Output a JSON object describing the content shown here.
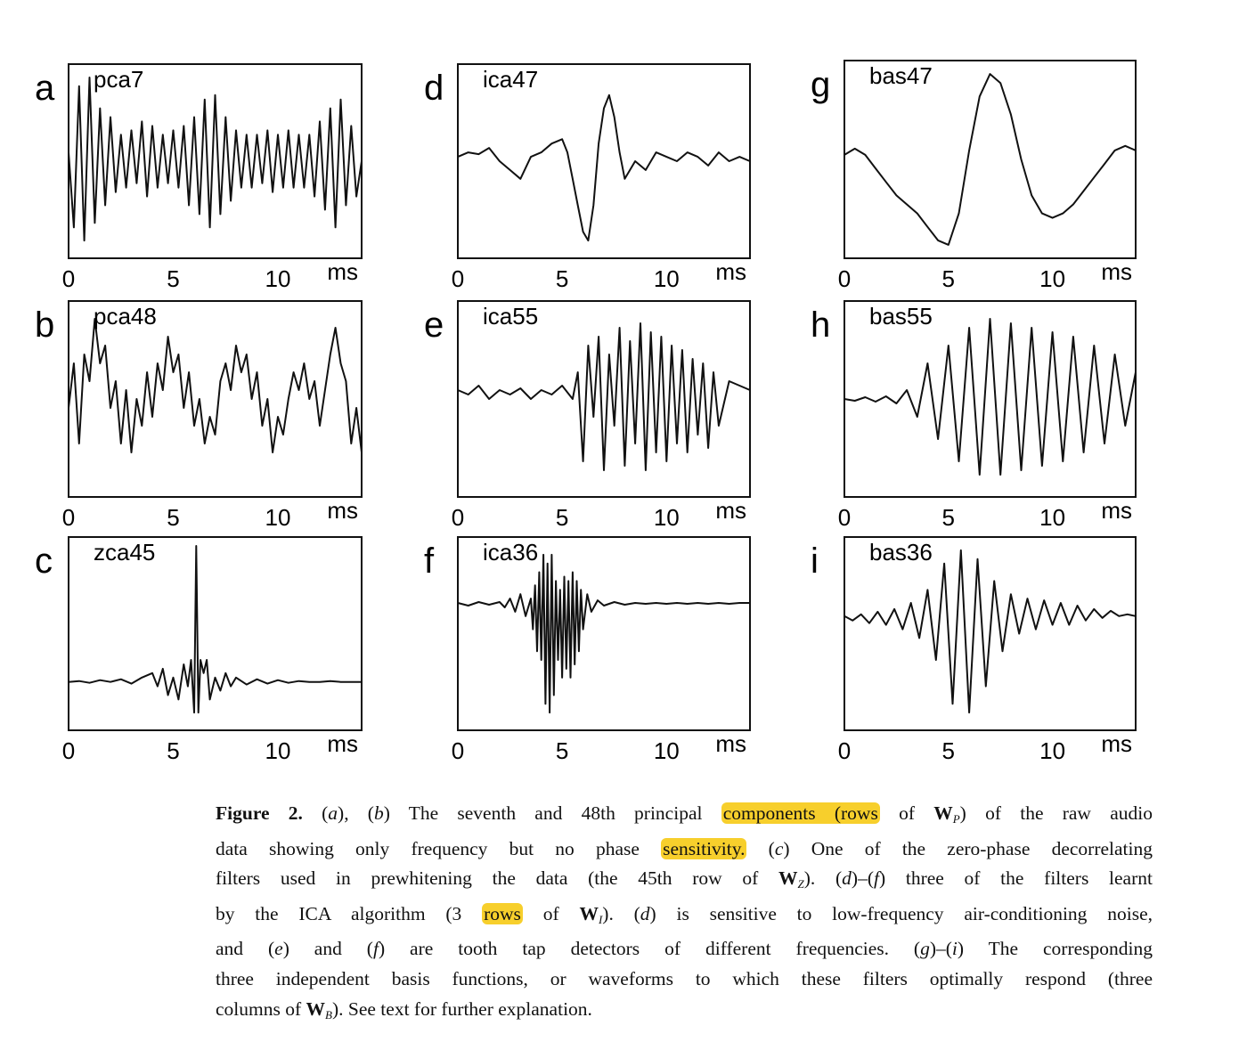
{
  "chart_data": [
    {
      "type": "line",
      "letter": "a",
      "title": "pca7",
      "xticks": [
        "0",
        "5",
        "10"
      ],
      "unit": "ms",
      "xlim": [
        0,
        14
      ],
      "ylim": [
        -1,
        1
      ],
      "x": [
        0.0,
        0.25,
        0.5,
        0.75,
        1.0,
        1.25,
        1.5,
        1.75,
        2.0,
        2.25,
        2.5,
        2.75,
        3.0,
        3.25,
        3.5,
        3.75,
        4.0,
        4.25,
        4.5,
        4.75,
        5.0,
        5.25,
        5.5,
        5.75,
        6.0,
        6.25,
        6.5,
        6.75,
        7.0,
        7.25,
        7.5,
        7.75,
        8.0,
        8.25,
        8.5,
        8.75,
        9.0,
        9.25,
        9.5,
        9.75,
        10.0,
        10.25,
        10.5,
        10.75,
        11.0,
        11.25,
        11.5,
        11.75,
        12.0,
        12.25,
        12.5,
        12.75,
        13.0,
        13.25,
        13.5,
        13.75,
        14.0
      ],
      "y": [
        0.1,
        -0.75,
        0.85,
        -0.9,
        0.95,
        -0.7,
        0.6,
        -0.5,
        0.5,
        -0.35,
        0.3,
        -0.3,
        0.35,
        -0.25,
        0.45,
        -0.4,
        0.4,
        -0.3,
        0.3,
        -0.25,
        0.35,
        -0.3,
        0.4,
        -0.5,
        0.5,
        -0.6,
        0.7,
        -0.75,
        0.75,
        -0.6,
        0.5,
        -0.45,
        0.35,
        -0.3,
        0.3,
        -0.3,
        0.3,
        -0.25,
        0.35,
        -0.35,
        0.3,
        -0.3,
        0.35,
        -0.3,
        0.3,
        -0.3,
        0.3,
        -0.4,
        0.45,
        -0.55,
        0.6,
        -0.75,
        0.7,
        -0.5,
        0.4,
        -0.4,
        0.0
      ]
    },
    {
      "type": "line",
      "letter": "b",
      "title": "pca48",
      "xticks": [
        "0",
        "5",
        "10"
      ],
      "unit": "ms",
      "xlim": [
        0,
        14
      ],
      "ylim": [
        -1,
        1
      ],
      "x": [
        0.0,
        0.25,
        0.5,
        0.75,
        1.0,
        1.25,
        1.5,
        1.75,
        2.0,
        2.25,
        2.5,
        2.75,
        3.0,
        3.25,
        3.5,
        3.75,
        4.0,
        4.25,
        4.5,
        4.75,
        5.0,
        5.25,
        5.5,
        5.75,
        6.0,
        6.25,
        6.5,
        6.75,
        7.0,
        7.25,
        7.5,
        7.75,
        8.0,
        8.25,
        8.5,
        8.75,
        9.0,
        9.25,
        9.5,
        9.75,
        10.0,
        10.25,
        10.5,
        10.75,
        11.0,
        11.25,
        11.5,
        11.75,
        12.0,
        12.25,
        12.5,
        12.75,
        13.0,
        13.25,
        13.5,
        13.75,
        14.0
      ],
      "y": [
        -0.1,
        0.4,
        -0.5,
        0.5,
        0.2,
        0.9,
        0.4,
        0.6,
        -0.1,
        0.2,
        -0.5,
        0.1,
        -0.6,
        0.0,
        -0.3,
        0.3,
        -0.2,
        0.4,
        0.1,
        0.7,
        0.3,
        0.5,
        -0.1,
        0.3,
        -0.3,
        0.0,
        -0.5,
        -0.2,
        -0.4,
        0.2,
        0.4,
        0.1,
        0.6,
        0.3,
        0.5,
        0.0,
        0.3,
        -0.3,
        0.0,
        -0.6,
        -0.2,
        -0.4,
        0.0,
        0.3,
        0.1,
        0.4,
        0.0,
        0.2,
        -0.3,
        0.1,
        0.5,
        0.8,
        0.4,
        0.2,
        -0.5,
        -0.1,
        -0.6
      ]
    },
    {
      "type": "line",
      "letter": "c",
      "title": "zca45",
      "xticks": [
        "0",
        "5",
        "10"
      ],
      "unit": "ms",
      "xlim": [
        0,
        14
      ],
      "ylim": [
        -1,
        1
      ],
      "x": [
        0.0,
        0.5,
        1.0,
        1.5,
        2.0,
        2.5,
        3.0,
        3.5,
        4.0,
        4.25,
        4.5,
        4.75,
        5.0,
        5.25,
        5.5,
        5.7,
        5.85,
        6.0,
        6.1,
        6.2,
        6.3,
        6.45,
        6.6,
        6.75,
        7.0,
        7.25,
        7.5,
        7.75,
        8.0,
        8.5,
        9.0,
        9.5,
        10.0,
        10.5,
        11.0,
        11.5,
        12.0,
        12.5,
        13.0,
        13.5,
        14.0
      ],
      "y": [
        -0.55,
        -0.54,
        -0.56,
        -0.53,
        -0.55,
        -0.52,
        -0.57,
        -0.5,
        -0.45,
        -0.6,
        -0.4,
        -0.7,
        -0.5,
        -0.75,
        -0.35,
        -0.6,
        -0.3,
        -0.9,
        1.0,
        -0.9,
        -0.3,
        -0.45,
        -0.3,
        -0.75,
        -0.5,
        -0.65,
        -0.45,
        -0.6,
        -0.5,
        -0.58,
        -0.52,
        -0.57,
        -0.53,
        -0.56,
        -0.54,
        -0.55,
        -0.55,
        -0.54,
        -0.55,
        -0.55,
        -0.55
      ]
    },
    {
      "type": "line",
      "letter": "d",
      "title": "ica47",
      "xticks": [
        "0",
        "5",
        "10"
      ],
      "unit": "ms",
      "xlim": [
        0,
        14
      ],
      "ylim": [
        -1,
        1
      ],
      "x": [
        0.0,
        0.5,
        1.0,
        1.5,
        2.0,
        2.5,
        3.0,
        3.5,
        4.0,
        4.5,
        5.0,
        5.25,
        5.5,
        5.75,
        6.0,
        6.25,
        6.5,
        6.75,
        7.0,
        7.25,
        7.5,
        7.75,
        8.0,
        8.5,
        9.0,
        9.5,
        10.0,
        10.5,
        11.0,
        11.5,
        12.0,
        12.5,
        13.0,
        13.5,
        14.0
      ],
      "y": [
        0.05,
        0.1,
        0.08,
        0.15,
        0.0,
        -0.1,
        -0.2,
        0.05,
        0.1,
        0.2,
        0.25,
        0.1,
        -0.2,
        -0.5,
        -0.8,
        -0.9,
        -0.5,
        0.2,
        0.6,
        0.75,
        0.5,
        0.1,
        -0.2,
        0.0,
        -0.1,
        0.1,
        0.05,
        0.0,
        0.1,
        0.05,
        -0.05,
        0.1,
        0.0,
        0.05,
        0.0
      ]
    },
    {
      "type": "line",
      "letter": "e",
      "title": "ica55",
      "xticks": [
        "0",
        "5",
        "10"
      ],
      "unit": "ms",
      "xlim": [
        0,
        14
      ],
      "ylim": [
        -1,
        1
      ],
      "x": [
        0.0,
        0.5,
        1.0,
        1.5,
        2.0,
        2.5,
        3.0,
        3.5,
        4.0,
        4.5,
        5.0,
        5.5,
        5.75,
        6.0,
        6.25,
        6.5,
        6.75,
        7.0,
        7.25,
        7.5,
        7.75,
        8.0,
        8.25,
        8.5,
        8.75,
        9.0,
        9.25,
        9.5,
        9.75,
        10.0,
        10.25,
        10.5,
        10.75,
        11.0,
        11.25,
        11.5,
        11.75,
        12.0,
        12.25,
        12.5,
        13.0,
        13.5,
        14.0
      ],
      "y": [
        0.1,
        0.05,
        0.15,
        0.0,
        0.1,
        0.05,
        0.12,
        0.0,
        0.1,
        0.05,
        0.15,
        0.0,
        0.3,
        -0.7,
        0.6,
        -0.2,
        0.7,
        -0.8,
        0.5,
        -0.3,
        0.8,
        -0.75,
        0.65,
        -0.5,
        0.85,
        -0.8,
        0.75,
        -0.6,
        0.7,
        -0.7,
        0.6,
        -0.5,
        0.55,
        -0.6,
        0.45,
        -0.4,
        0.4,
        -0.55,
        0.3,
        -0.3,
        0.2,
        0.15,
        0.1
      ]
    },
    {
      "type": "line",
      "letter": "f",
      "title": "ica36",
      "xticks": [
        "0",
        "5",
        "10"
      ],
      "unit": "ms",
      "xlim": [
        0,
        14
      ],
      "ylim": [
        -1,
        1
      ],
      "x": [
        0.0,
        0.5,
        1.0,
        1.5,
        2.0,
        2.25,
        2.5,
        2.75,
        3.0,
        3.25,
        3.5,
        3.6,
        3.7,
        3.8,
        3.9,
        4.0,
        4.1,
        4.2,
        4.3,
        4.4,
        4.5,
        4.6,
        4.7,
        4.8,
        4.9,
        5.0,
        5.1,
        5.2,
        5.3,
        5.4,
        5.5,
        5.6,
        5.7,
        5.8,
        5.9,
        6.0,
        6.2,
        6.4,
        6.7,
        7.0,
        7.5,
        8.0,
        8.5,
        9.0,
        9.5,
        10.0,
        10.5,
        11.0,
        11.5,
        12.0,
        12.5,
        13.0,
        13.5,
        14.0
      ],
      "y": [
        0.35,
        0.32,
        0.36,
        0.33,
        0.36,
        0.3,
        0.4,
        0.25,
        0.45,
        0.2,
        0.4,
        0.05,
        0.55,
        -0.2,
        0.7,
        -0.3,
        0.9,
        -0.8,
        0.8,
        -0.9,
        0.9,
        -0.7,
        0.6,
        -0.3,
        0.5,
        -0.5,
        0.65,
        -0.4,
        0.6,
        -0.5,
        0.7,
        -0.35,
        0.6,
        -0.2,
        0.5,
        0.05,
        0.45,
        0.25,
        0.38,
        0.32,
        0.36,
        0.33,
        0.35,
        0.34,
        0.35,
        0.34,
        0.35,
        0.34,
        0.35,
        0.34,
        0.35,
        0.34,
        0.35,
        0.35
      ]
    },
    {
      "type": "line",
      "letter": "g",
      "title": "bas47",
      "xticks": [
        "0",
        "5",
        "10"
      ],
      "unit": "ms",
      "xlim": [
        0,
        14
      ],
      "ylim": [
        -1,
        1
      ],
      "x": [
        0.0,
        0.5,
        1.0,
        1.5,
        2.0,
        2.5,
        3.0,
        3.5,
        4.0,
        4.5,
        5.0,
        5.5,
        6.0,
        6.5,
        7.0,
        7.5,
        8.0,
        8.5,
        9.0,
        9.5,
        10.0,
        10.5,
        11.0,
        11.5,
        12.0,
        12.5,
        13.0,
        13.5,
        14.0
      ],
      "y": [
        0.05,
        0.12,
        0.05,
        -0.1,
        -0.25,
        -0.4,
        -0.5,
        -0.6,
        -0.75,
        -0.9,
        -0.95,
        -0.6,
        0.1,
        0.7,
        0.95,
        0.85,
        0.5,
        0.0,
        -0.4,
        -0.6,
        -0.65,
        -0.6,
        -0.5,
        -0.35,
        -0.2,
        -0.05,
        0.1,
        0.15,
        0.1
      ]
    },
    {
      "type": "line",
      "letter": "h",
      "title": "bas55",
      "xticks": [
        "0",
        "5",
        "10"
      ],
      "unit": "ms",
      "xlim": [
        0,
        14
      ],
      "ylim": [
        -1,
        1
      ],
      "x": [
        0.0,
        0.5,
        1.0,
        1.5,
        2.0,
        2.5,
        3.0,
        3.5,
        4.0,
        4.5,
        5.0,
        5.5,
        6.0,
        6.5,
        7.0,
        7.5,
        8.0,
        8.5,
        9.0,
        9.5,
        10.0,
        10.5,
        11.0,
        11.5,
        12.0,
        12.5,
        13.0,
        13.5,
        14.0
      ],
      "y": [
        0.0,
        -0.02,
        0.02,
        -0.03,
        0.03,
        -0.05,
        0.1,
        -0.2,
        0.4,
        -0.45,
        0.6,
        -0.7,
        0.8,
        -0.85,
        0.9,
        -0.85,
        0.85,
        -0.8,
        0.8,
        -0.75,
        0.75,
        -0.7,
        0.7,
        -0.6,
        0.6,
        -0.5,
        0.5,
        -0.3,
        0.3
      ]
    },
    {
      "type": "line",
      "letter": "i",
      "title": "bas36",
      "xticks": [
        "0",
        "5",
        "10"
      ],
      "unit": "ms",
      "xlim": [
        0,
        14
      ],
      "ylim": [
        -1,
        1
      ],
      "x": [
        0.0,
        0.4,
        0.8,
        1.2,
        1.6,
        2.0,
        2.4,
        2.8,
        3.2,
        3.6,
        4.0,
        4.4,
        4.8,
        5.2,
        5.6,
        6.0,
        6.4,
        6.8,
        7.2,
        7.6,
        8.0,
        8.4,
        8.8,
        9.2,
        9.6,
        10.0,
        10.4,
        10.8,
        11.2,
        11.6,
        12.0,
        12.4,
        12.8,
        13.2,
        13.6,
        14.0
      ],
      "y": [
        0.2,
        0.15,
        0.22,
        0.12,
        0.25,
        0.1,
        0.28,
        0.05,
        0.35,
        -0.05,
        0.5,
        -0.3,
        0.8,
        -0.8,
        0.95,
        -0.9,
        0.85,
        -0.6,
        0.6,
        -0.2,
        0.45,
        0.0,
        0.4,
        0.05,
        0.38,
        0.1,
        0.35,
        0.1,
        0.32,
        0.15,
        0.28,
        0.18,
        0.26,
        0.2,
        0.22,
        0.2
      ]
    }
  ],
  "caption": {
    "lines": [
      [
        [
          "lbl",
          "Figure 2."
        ],
        [
          "t",
          " ("
        ],
        [
          "i",
          "a"
        ],
        [
          "t",
          "), ("
        ],
        [
          "i",
          "b"
        ],
        [
          "t",
          ") The seventh and 48th principal "
        ],
        [
          "hl",
          "components (rows"
        ],
        [
          "t",
          " of "
        ],
        [
          "b",
          "W"
        ],
        [
          "sub",
          "P"
        ],
        [
          "t",
          ") of the raw audio"
        ]
      ],
      [
        [
          "t",
          "data showing only frequency but no phase "
        ],
        [
          "hl",
          "sensitivity."
        ],
        [
          "t",
          " ("
        ],
        [
          "i",
          "c"
        ],
        [
          "t",
          ") One of the zero-phase decorrelating"
        ]
      ],
      [
        [
          "t",
          "filters used in prewhitening the data (the 45th row of "
        ],
        [
          "b",
          "W"
        ],
        [
          "sub",
          "Z"
        ],
        [
          "t",
          "). ("
        ],
        [
          "i",
          "d"
        ],
        [
          "t",
          ")–("
        ],
        [
          "i",
          "f"
        ],
        [
          "t",
          ") three of the filters learnt"
        ]
      ],
      [
        [
          "t",
          "by the ICA algorithm (3 "
        ],
        [
          "hl",
          "rows"
        ],
        [
          "t",
          " of "
        ],
        [
          "b",
          "W"
        ],
        [
          "sub",
          "I"
        ],
        [
          "t",
          "). ("
        ],
        [
          "i",
          "d"
        ],
        [
          "t",
          ") is sensitive to low-frequency air-conditioning noise,"
        ]
      ],
      [
        [
          "t",
          "and ("
        ],
        [
          "i",
          "e"
        ],
        [
          "t",
          ") and ("
        ],
        [
          "i",
          "f"
        ],
        [
          "t",
          ") are tooth tap detectors of different frequencies. ("
        ],
        [
          "i",
          "g"
        ],
        [
          "t",
          ")–("
        ],
        [
          "i",
          "i"
        ],
        [
          "t",
          ") The corresponding"
        ]
      ],
      [
        [
          "t",
          "three independent basis functions, or waveforms to which these filters optimally respond (three"
        ]
      ],
      [
        [
          "t",
          "columns of "
        ],
        [
          "b",
          "W"
        ],
        [
          "sub",
          "B"
        ],
        [
          "t",
          "). See text for further explanation."
        ]
      ]
    ]
  }
}
